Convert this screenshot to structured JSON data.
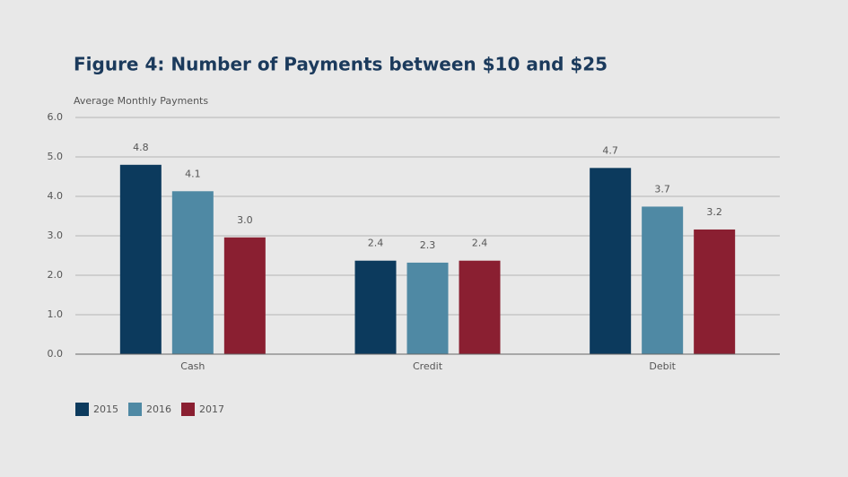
{
  "chart_data": {
    "type": "bar",
    "title": "Figure 4: Number of Payments between $10 and $25",
    "y_label": "Average Monthly Payments",
    "categories": [
      "Cash",
      "Credit",
      "Debit"
    ],
    "series": [
      {
        "name": "2015",
        "color": "#0c3a5d",
        "values": [
          4.8,
          2.37,
          4.72
        ],
        "value_labels": [
          "4.8",
          "2.4",
          "4.7"
        ]
      },
      {
        "name": "2016",
        "color": "#4f89a4",
        "values": [
          4.13,
          2.32,
          3.74
        ],
        "value_labels": [
          "4.1",
          "2.3",
          "3.7"
        ]
      },
      {
        "name": "2017",
        "color": "#8a1f31",
        "values": [
          2.96,
          2.37,
          3.16
        ],
        "value_labels": [
          "3.0",
          "2.4",
          "3.2"
        ]
      }
    ],
    "ylim": [
      0,
      6
    ],
    "yticks": [
      {
        "value": 0,
        "label": "0.0"
      },
      {
        "value": 1,
        "label": "1.0"
      },
      {
        "value": 2,
        "label": "2.0"
      },
      {
        "value": 3,
        "label": "3.0"
      },
      {
        "value": 4,
        "label": "4.0"
      },
      {
        "value": 5,
        "label": "5.0"
      },
      {
        "value": 6,
        "label": "6.0"
      }
    ],
    "grid": true,
    "legend": "bottom-left"
  }
}
